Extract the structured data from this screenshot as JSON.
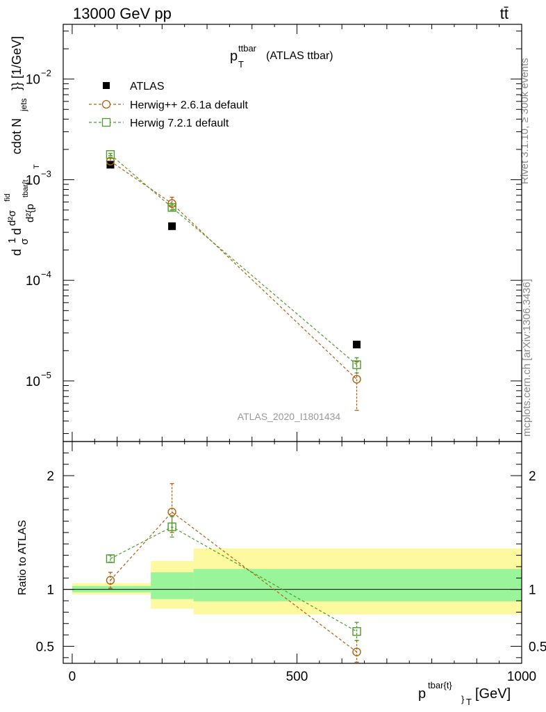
{
  "header": {
    "left": "13000 GeV pp",
    "right": "tt̄"
  },
  "side": {
    "rivet": "Rivet 3.1.10, ≥ 300k events",
    "mcplots": "mcplots.cern.ch [arXiv:1306.3436]"
  },
  "watermark": "ATLAS_2020_I1801434",
  "chart_data": [
    {
      "type": "scatter",
      "panel": "main",
      "title": {
        "main": "p",
        "sup": "ttbar",
        "sub": "T",
        "rest": "(ATLAS ttbar)"
      },
      "ylabel": "d²σ / d p_T^{ttbar} ... [1/GeV]",
      "ylabel_parts": {
        "frac1": "d",
        "frac1b": "1",
        "frac1c": "d",
        "sigma": "σ",
        "sigma_sup": "fid",
        "d2": "d²σ",
        "denom": "d²{p",
        "denom_sup": "tbar{t",
        "denom_sub": "T",
        "middle": "cdot N",
        "middle_sub": "jets",
        "tail": "}} [1/GeV]"
      },
      "yscale": "log",
      "ylim": [
        2.5e-06,
        0.035
      ],
      "xlim": [
        -20,
        1000
      ],
      "y_ticks": [
        {
          "value": 1e-05,
          "base": "10",
          "exp": "−5"
        },
        {
          "value": 0.0001,
          "base": "10",
          "exp": "−4"
        },
        {
          "value": 0.001,
          "base": "10",
          "exp": "−3"
        },
        {
          "value": 0.01,
          "base": "10",
          "exp": "−2"
        }
      ],
      "legend_position": "top-left",
      "series": [
        {
          "name": "ATLAS",
          "marker": "filled-square",
          "color": "#000000",
          "x": [
            85,
            222,
            633
          ],
          "y": [
            0.00141,
            0.000345,
            2.3e-05
          ]
        },
        {
          "name": "Herwig++ 2.6.1a default",
          "marker": "open-circle",
          "color": "#b25f0f",
          "line": "dashed",
          "x": [
            85,
            222,
            633
          ],
          "y": [
            0.00153,
            0.00058,
            1.04e-05
          ],
          "yerr_low": [
            0.00143,
            0.0005,
            5.1e-06
          ],
          "yerr_high": [
            0.00163,
            0.00067,
            1.55e-05
          ]
        },
        {
          "name": "Herwig 7.2.1 default",
          "marker": "open-square",
          "color": "#4c9a2a",
          "line": "dashed",
          "x": [
            85,
            222,
            633
          ],
          "y": [
            0.00178,
            0.00053,
            1.45e-05
          ],
          "yerr_low": [
            0.00173,
            0.0005,
            1.2e-05
          ],
          "yerr_high": [
            0.00183,
            0.00056,
            1.7e-05
          ]
        }
      ]
    },
    {
      "type": "scatter",
      "panel": "ratio",
      "ylabel": "Ratio to ATLAS",
      "xlabel": {
        "main": "p",
        "sup": "tbar{t}",
        "sub": "}",
        "sub2": "T",
        "unit": "[GeV]"
      },
      "ylim": [
        0.35,
        2.3
      ],
      "xlim": [
        -20,
        1000
      ],
      "x_ticks": [
        0,
        500,
        1000
      ],
      "y_ticks": [
        0.5,
        1,
        2
      ],
      "reference_line": 1,
      "bands": [
        {
          "x": [
            0,
            175
          ],
          "yellow": [
            0.955,
            1.055
          ],
          "green": [
            0.975,
            1.03
          ]
        },
        {
          "x": [
            175,
            270
          ],
          "yellow": [
            0.83,
            1.25
          ],
          "green": [
            0.915,
            1.15
          ]
        },
        {
          "x": [
            270,
            1000
          ],
          "yellow": [
            0.78,
            1.36
          ],
          "green": [
            0.895,
            1.18
          ]
        }
      ],
      "series": [
        {
          "name": "Herwig++ 2.6.1a default",
          "color": "#b25f0f",
          "x": [
            85,
            222,
            633
          ],
          "y": [
            1.08,
            1.68,
            0.45
          ],
          "yerr_low": [
            1.01,
            1.5,
            0.36
          ],
          "yerr_high": [
            1.15,
            1.93,
            0.55
          ]
        },
        {
          "name": "Herwig 7.2.1 default",
          "color": "#4c9a2a",
          "x": [
            85,
            222,
            633
          ],
          "y": [
            1.27,
            1.55,
            0.63
          ],
          "yerr_low": [
            1.24,
            1.46,
            0.55
          ],
          "yerr_high": [
            1.3,
            1.64,
            0.71
          ]
        }
      ]
    }
  ]
}
